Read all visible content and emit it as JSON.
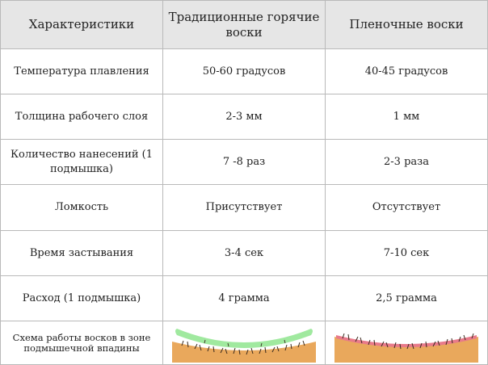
{
  "header": {
    "col1": "Характеристики",
    "col2": "Традиционные горячие воски",
    "col3": "Пленочные воски"
  },
  "rows": [
    {
      "label": "Температура плавления",
      "traditional": "50-60 градусов",
      "film": "40-45 градусов"
    },
    {
      "label": "Толщина рабочего  слоя",
      "traditional": "2-3 мм",
      "film": "1 мм"
    },
    {
      "label": "Количество нанесений (1 подмышка)",
      "traditional": "7 -8 раз",
      "film": "2-3 раза"
    },
    {
      "label": "Ломкость",
      "traditional": "Присутствует",
      "film": "Отсутствует"
    },
    {
      "label": "Время застывания",
      "traditional": "3-4 сек",
      "film": "7-10 сек"
    },
    {
      "label": "Расход (1 подмышка)",
      "traditional": "4 грамма",
      "film": "2,5 грамма"
    }
  ],
  "scheme": {
    "label": "Схема работы восков в зоне подмышечной впадины",
    "traditional_image": "green-wax-over-skin-hair-illustration",
    "film_image": "pink-film-wax-over-skin-hair-illustration"
  },
  "colors": {
    "header_bg": "#e6e6e6",
    "border": "#b9b9b9",
    "skin": "#e9a85c",
    "green_wax": "#9be89a",
    "pink_wax": "#e87a8a",
    "hair": "#3a2a1e"
  }
}
